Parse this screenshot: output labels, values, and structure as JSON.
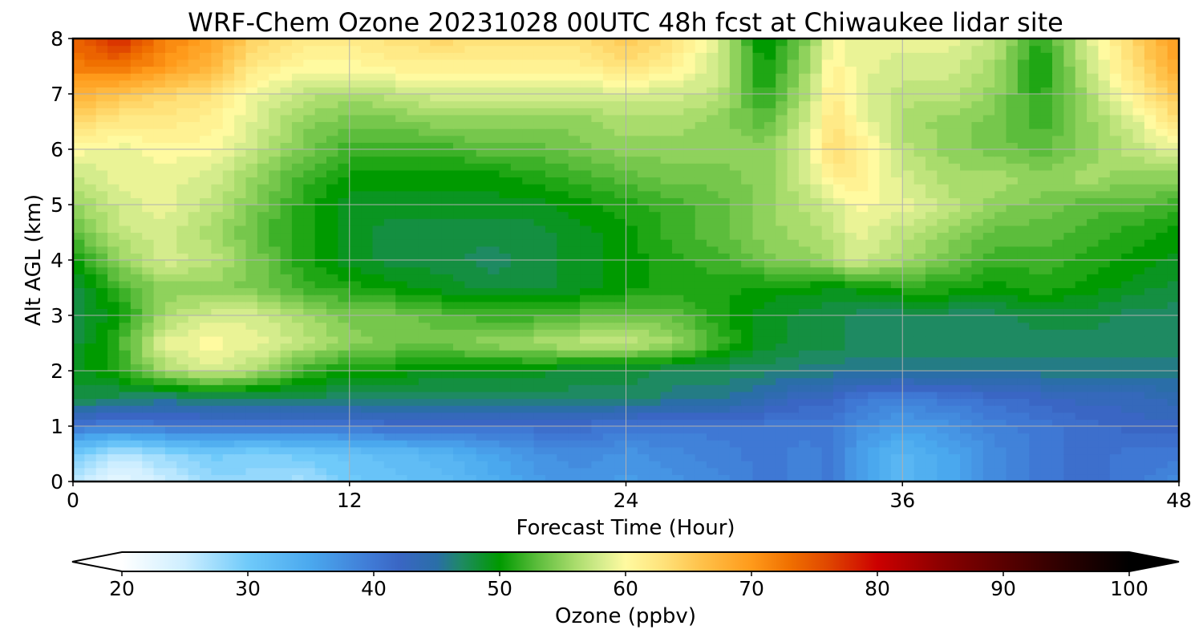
{
  "chart_data": {
    "type": "heatmap",
    "title": "WRF-Chem Ozone  20231028 00UTC 48h fcst at Chiwaukee lidar site",
    "xlabel": "Forecast Time (Hour)",
    "ylabel": "Alt AGL (km)",
    "xlim": [
      0,
      48
    ],
    "ylim": [
      0,
      8
    ],
    "x_ticks": [
      0,
      12,
      24,
      36,
      48
    ],
    "y_ticks": [
      0,
      1,
      2,
      3,
      4,
      5,
      6,
      7,
      8
    ],
    "grid": true,
    "colorbar": {
      "label": "Ozone  (ppbv)",
      "min": 20,
      "max": 100,
      "ticks": [
        20,
        30,
        40,
        50,
        60,
        70,
        80,
        90,
        100
      ],
      "extend": "both",
      "color_stops": [
        {
          "v": 20,
          "c": "#ffffff"
        },
        {
          "v": 25,
          "c": "#cdeeff"
        },
        {
          "v": 30,
          "c": "#6fcafa"
        },
        {
          "v": 35,
          "c": "#4aa8ee"
        },
        {
          "v": 40,
          "c": "#3f78d4"
        },
        {
          "v": 42,
          "c": "#3a66c4"
        },
        {
          "v": 45,
          "c": "#2a6ea8"
        },
        {
          "v": 47,
          "c": "#1e8a62"
        },
        {
          "v": 50,
          "c": "#009a00"
        },
        {
          "v": 53,
          "c": "#5cbd3c"
        },
        {
          "v": 56,
          "c": "#a9dc6c"
        },
        {
          "v": 58,
          "c": "#d4ec8c"
        },
        {
          "v": 60,
          "c": "#fffaa0"
        },
        {
          "v": 63,
          "c": "#ffe27a"
        },
        {
          "v": 66,
          "c": "#ffc24a"
        },
        {
          "v": 70,
          "c": "#ff9a1a"
        },
        {
          "v": 73,
          "c": "#f07000"
        },
        {
          "v": 76,
          "c": "#e04800"
        },
        {
          "v": 80,
          "c": "#cc0000"
        },
        {
          "v": 85,
          "c": "#8c0000"
        },
        {
          "v": 90,
          "c": "#5a0000"
        },
        {
          "v": 95,
          "c": "#2a0000"
        },
        {
          "v": 100,
          "c": "#000000"
        }
      ]
    },
    "x": [
      0,
      2,
      4,
      6,
      8,
      10,
      12,
      14,
      16,
      18,
      20,
      22,
      24,
      26,
      28,
      30,
      32,
      33,
      34,
      36,
      38,
      40,
      42,
      44,
      46,
      48
    ],
    "y": [
      0,
      0.5,
      1,
      1.5,
      2,
      2.5,
      3,
      3.5,
      4,
      4.5,
      5,
      5.5,
      6,
      6.5,
      7,
      7.5,
      8
    ],
    "z": [
      [
        26,
        22,
        25,
        28,
        28,
        27,
        30,
        31,
        32,
        34,
        36,
        37,
        36,
        37,
        38,
        40,
        39,
        40,
        36,
        33,
        35,
        38,
        40,
        41,
        40,
        38
      ],
      [
        30,
        26,
        28,
        30,
        29,
        30,
        31,
        32,
        33,
        35,
        37,
        38,
        37,
        38,
        39,
        40,
        39,
        40,
        36,
        33,
        35,
        38,
        40,
        41,
        40,
        40
      ],
      [
        40,
        39,
        40,
        40,
        40,
        40,
        40,
        41,
        41,
        41,
        41,
        41,
        40,
        40,
        40,
        40,
        40,
        40,
        38,
        36,
        37,
        39,
        40,
        41,
        42,
        42
      ],
      [
        48,
        47,
        46,
        47,
        47,
        47,
        47,
        47,
        47,
        47,
        47,
        47,
        47,
        46,
        46,
        44,
        42,
        42,
        40,
        39,
        40,
        41,
        42,
        43,
        43,
        44
      ],
      [
        49,
        51,
        56,
        58,
        56,
        52,
        50,
        50,
        49,
        49,
        49,
        48,
        48,
        47,
        47,
        47,
        46,
        46,
        46,
        46,
        46,
        46,
        46,
        46,
        46,
        46
      ],
      [
        48,
        52,
        59,
        60,
        59,
        57,
        55,
        54,
        54,
        55,
        56,
        57,
        57,
        56,
        52,
        49,
        48,
        48,
        47,
        47,
        47,
        47,
        47,
        47,
        47,
        47
      ],
      [
        48,
        50,
        56,
        58,
        58,
        56,
        54,
        54,
        53,
        52,
        52,
        53,
        54,
        53,
        51,
        49,
        48,
        48,
        47,
        47,
        47,
        47,
        48,
        48,
        47,
        47
      ],
      [
        48,
        52,
        55,
        55,
        54,
        52,
        51,
        50,
        49,
        48,
        48,
        49,
        50,
        51,
        51,
        50,
        50,
        49,
        50,
        51,
        51,
        50,
        51,
        50,
        49,
        48
      ],
      [
        50,
        55,
        58,
        57,
        54,
        51,
        49,
        48,
        48,
        47,
        48,
        49,
        50,
        51,
        52,
        54,
        55,
        56,
        58,
        56,
        54,
        52,
        52,
        51,
        50,
        49
      ],
      [
        53,
        57,
        58,
        56,
        53,
        51,
        49,
        48,
        48,
        48,
        48,
        49,
        50,
        52,
        53,
        55,
        56,
        57,
        59,
        57,
        55,
        53,
        53,
        52,
        51,
        50
      ],
      [
        55,
        58,
        59,
        57,
        54,
        51,
        49,
        49,
        49,
        49,
        49,
        50,
        51,
        52,
        53,
        55,
        57,
        58,
        60,
        59,
        57,
        55,
        54,
        53,
        53,
        52
      ],
      [
        57,
        59,
        59,
        58,
        55,
        52,
        50,
        50,
        50,
        50,
        51,
        52,
        53,
        54,
        54,
        55,
        58,
        61,
        62,
        58,
        56,
        56,
        55,
        56,
        55,
        55
      ],
      [
        60,
        59,
        60,
        60,
        57,
        54,
        52,
        52,
        52,
        53,
        53,
        54,
        55,
        55,
        55,
        55,
        59,
        64,
        62,
        57,
        55,
        54,
        53,
        55,
        57,
        59
      ],
      [
        64,
        62,
        62,
        61,
        58,
        55,
        54,
        54,
        55,
        55,
        55,
        55,
        56,
        56,
        55,
        53,
        58,
        63,
        60,
        56,
        55,
        54,
        52,
        55,
        58,
        63
      ],
      [
        68,
        66,
        64,
        63,
        59,
        57,
        56,
        57,
        58,
        58,
        58,
        58,
        58,
        58,
        57,
        51,
        57,
        62,
        59,
        57,
        57,
        55,
        51,
        56,
        61,
        66
      ],
      [
        72,
        73,
        70,
        67,
        62,
        60,
        60,
        61,
        61,
        61,
        61,
        61,
        63,
        61,
        58,
        50,
        56,
        61,
        59,
        58,
        58,
        56,
        50,
        57,
        63,
        69
      ],
      [
        74,
        78,
        72,
        69,
        64,
        62,
        62,
        63,
        64,
        63,
        63,
        63,
        65,
        63,
        58,
        49,
        55,
        60,
        59,
        59,
        59,
        57,
        51,
        58,
        64,
        70
      ]
    ]
  }
}
